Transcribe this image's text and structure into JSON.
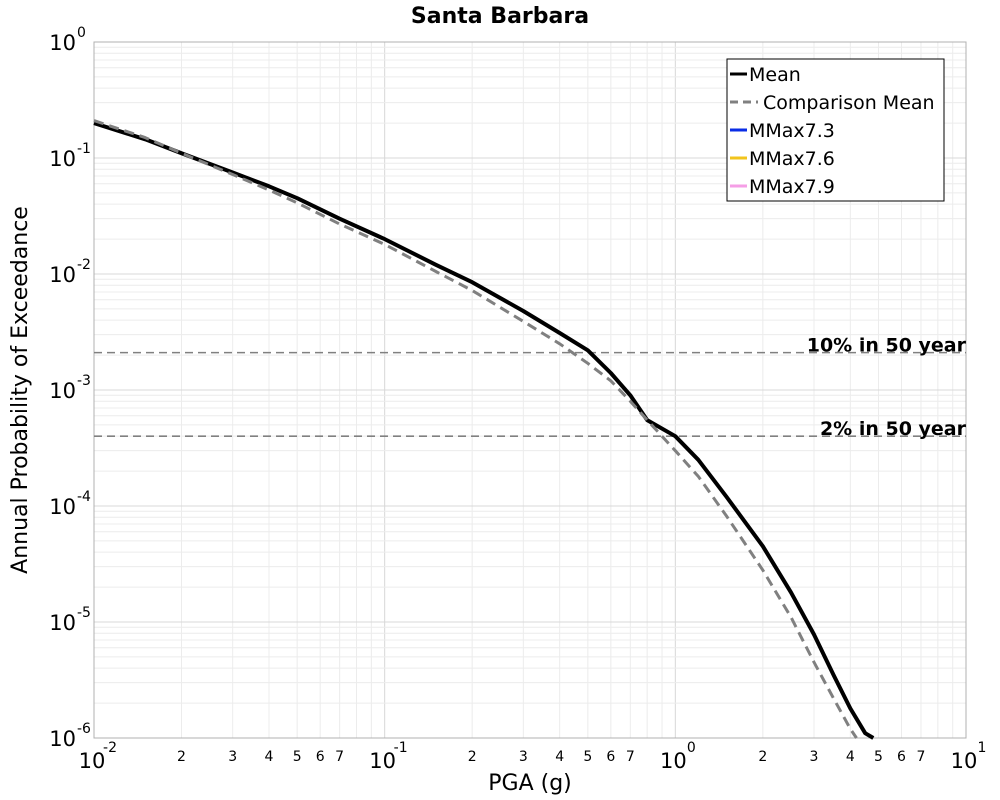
{
  "chart_data": {
    "type": "line",
    "title": "Santa Barbara",
    "xlabel": "PGA (g)",
    "ylabel": "Annual Probability of Exceedance",
    "x_scale": "log",
    "y_scale": "log",
    "xlim": [
      0.01,
      10
    ],
    "ylim": [
      1e-06,
      1
    ],
    "grid": true,
    "legend_position": "top-right",
    "x_major_ticks": [
      {
        "value": 0.01,
        "base": "10",
        "exp": "-2"
      },
      {
        "value": 0.1,
        "base": "10",
        "exp": "-1"
      },
      {
        "value": 1,
        "base": "10",
        "exp": "0"
      },
      {
        "value": 10,
        "base": "10",
        "exp": "1"
      }
    ],
    "x_minor_labels": [
      "2",
      "3",
      "4",
      "5",
      "6",
      "7"
    ],
    "y_major_ticks": [
      {
        "value": 1,
        "base": "10",
        "exp": "0"
      },
      {
        "value": 0.1,
        "base": "10",
        "exp": "-1"
      },
      {
        "value": 0.01,
        "base": "10",
        "exp": "-2"
      },
      {
        "value": 0.001,
        "base": "10",
        "exp": "-3"
      },
      {
        "value": 0.0001,
        "base": "10",
        "exp": "-4"
      },
      {
        "value": 1e-05,
        "base": "10",
        "exp": "-5"
      },
      {
        "value": 1e-06,
        "base": "10",
        "exp": "-6"
      }
    ],
    "series": [
      {
        "name": "Mean",
        "color": "#000000",
        "style": "solid",
        "x": [
          0.01,
          0.015,
          0.02,
          0.03,
          0.04,
          0.05,
          0.07,
          0.1,
          0.15,
          0.2,
          0.3,
          0.4,
          0.5,
          0.6,
          0.7,
          0.8,
          1.0,
          1.2,
          1.5,
          2.0,
          2.5,
          3.0,
          3.5,
          4.0,
          4.5,
          4.8
        ],
        "y": [
          0.2,
          0.145,
          0.11,
          0.075,
          0.057,
          0.045,
          0.03,
          0.02,
          0.012,
          0.0085,
          0.0048,
          0.0031,
          0.0022,
          0.0014,
          0.0009,
          0.00055,
          0.0004,
          0.00025,
          0.00012,
          4.5e-05,
          1.8e-05,
          7.8e-06,
          3.5e-06,
          1.8e-06,
          1.1e-06,
          1e-06
        ]
      },
      {
        "name": "Comparison Mean",
        "color": "#808080",
        "style": "dashed",
        "x": [
          0.01,
          0.015,
          0.02,
          0.03,
          0.04,
          0.05,
          0.07,
          0.1,
          0.15,
          0.2,
          0.3,
          0.4,
          0.5,
          0.6,
          0.7,
          0.8,
          1.0,
          1.2,
          1.5,
          2.0,
          2.5,
          3.0,
          3.5,
          4.0,
          4.2
        ],
        "y": [
          0.21,
          0.15,
          0.11,
          0.072,
          0.053,
          0.041,
          0.027,
          0.018,
          0.0105,
          0.0072,
          0.0039,
          0.0025,
          0.0017,
          0.0012,
          0.0008,
          0.00055,
          0.0003,
          0.00018,
          8.2e-05,
          2.8e-05,
          1.1e-05,
          4.5e-06,
          2.2e-06,
          1.2e-06,
          1e-06
        ]
      },
      {
        "name": "MMax7.3",
        "color": "#0a2ce6",
        "style": "solid",
        "x": [],
        "y": []
      },
      {
        "name": "MMax7.6",
        "color": "#f2c41c",
        "style": "solid",
        "x": [],
        "y": []
      },
      {
        "name": "MMax7.9",
        "color": "#f59ee6",
        "style": "solid",
        "x": [],
        "y": []
      }
    ],
    "reference_lines": [
      {
        "label": "10% in 50 year",
        "y": 0.0021,
        "color": "#808080",
        "style": "dashed"
      },
      {
        "label": "2% in 50 year",
        "y": 0.0004,
        "color": "#808080",
        "style": "dashed"
      }
    ]
  }
}
